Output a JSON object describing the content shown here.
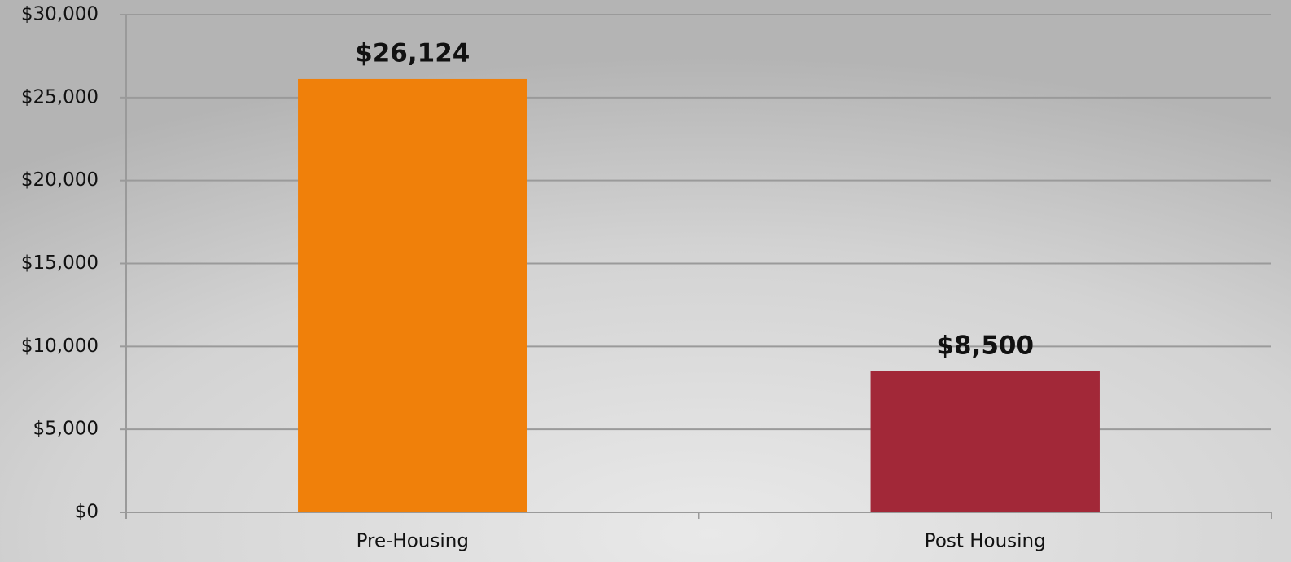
{
  "chart_data": {
    "type": "bar",
    "categories": [
      "Pre-Housing",
      "Post Housing"
    ],
    "values": [
      26124,
      8500
    ],
    "value_labels": [
      "$26,124",
      "$8,500"
    ],
    "colors": [
      "#f0800a",
      "#a22838"
    ],
    "ylim": [
      0,
      30000
    ],
    "yticks": [
      {
        "value": 0,
        "label": "$0"
      },
      {
        "value": 5000,
        "label": "$5,000"
      },
      {
        "value": 10000,
        "label": "$10,000"
      },
      {
        "value": 15000,
        "label": "$15,000"
      },
      {
        "value": 20000,
        "label": "$20,000"
      },
      {
        "value": 25000,
        "label": "$25,000"
      },
      {
        "value": 30000,
        "label": "$30,000"
      }
    ],
    "grid": true
  }
}
